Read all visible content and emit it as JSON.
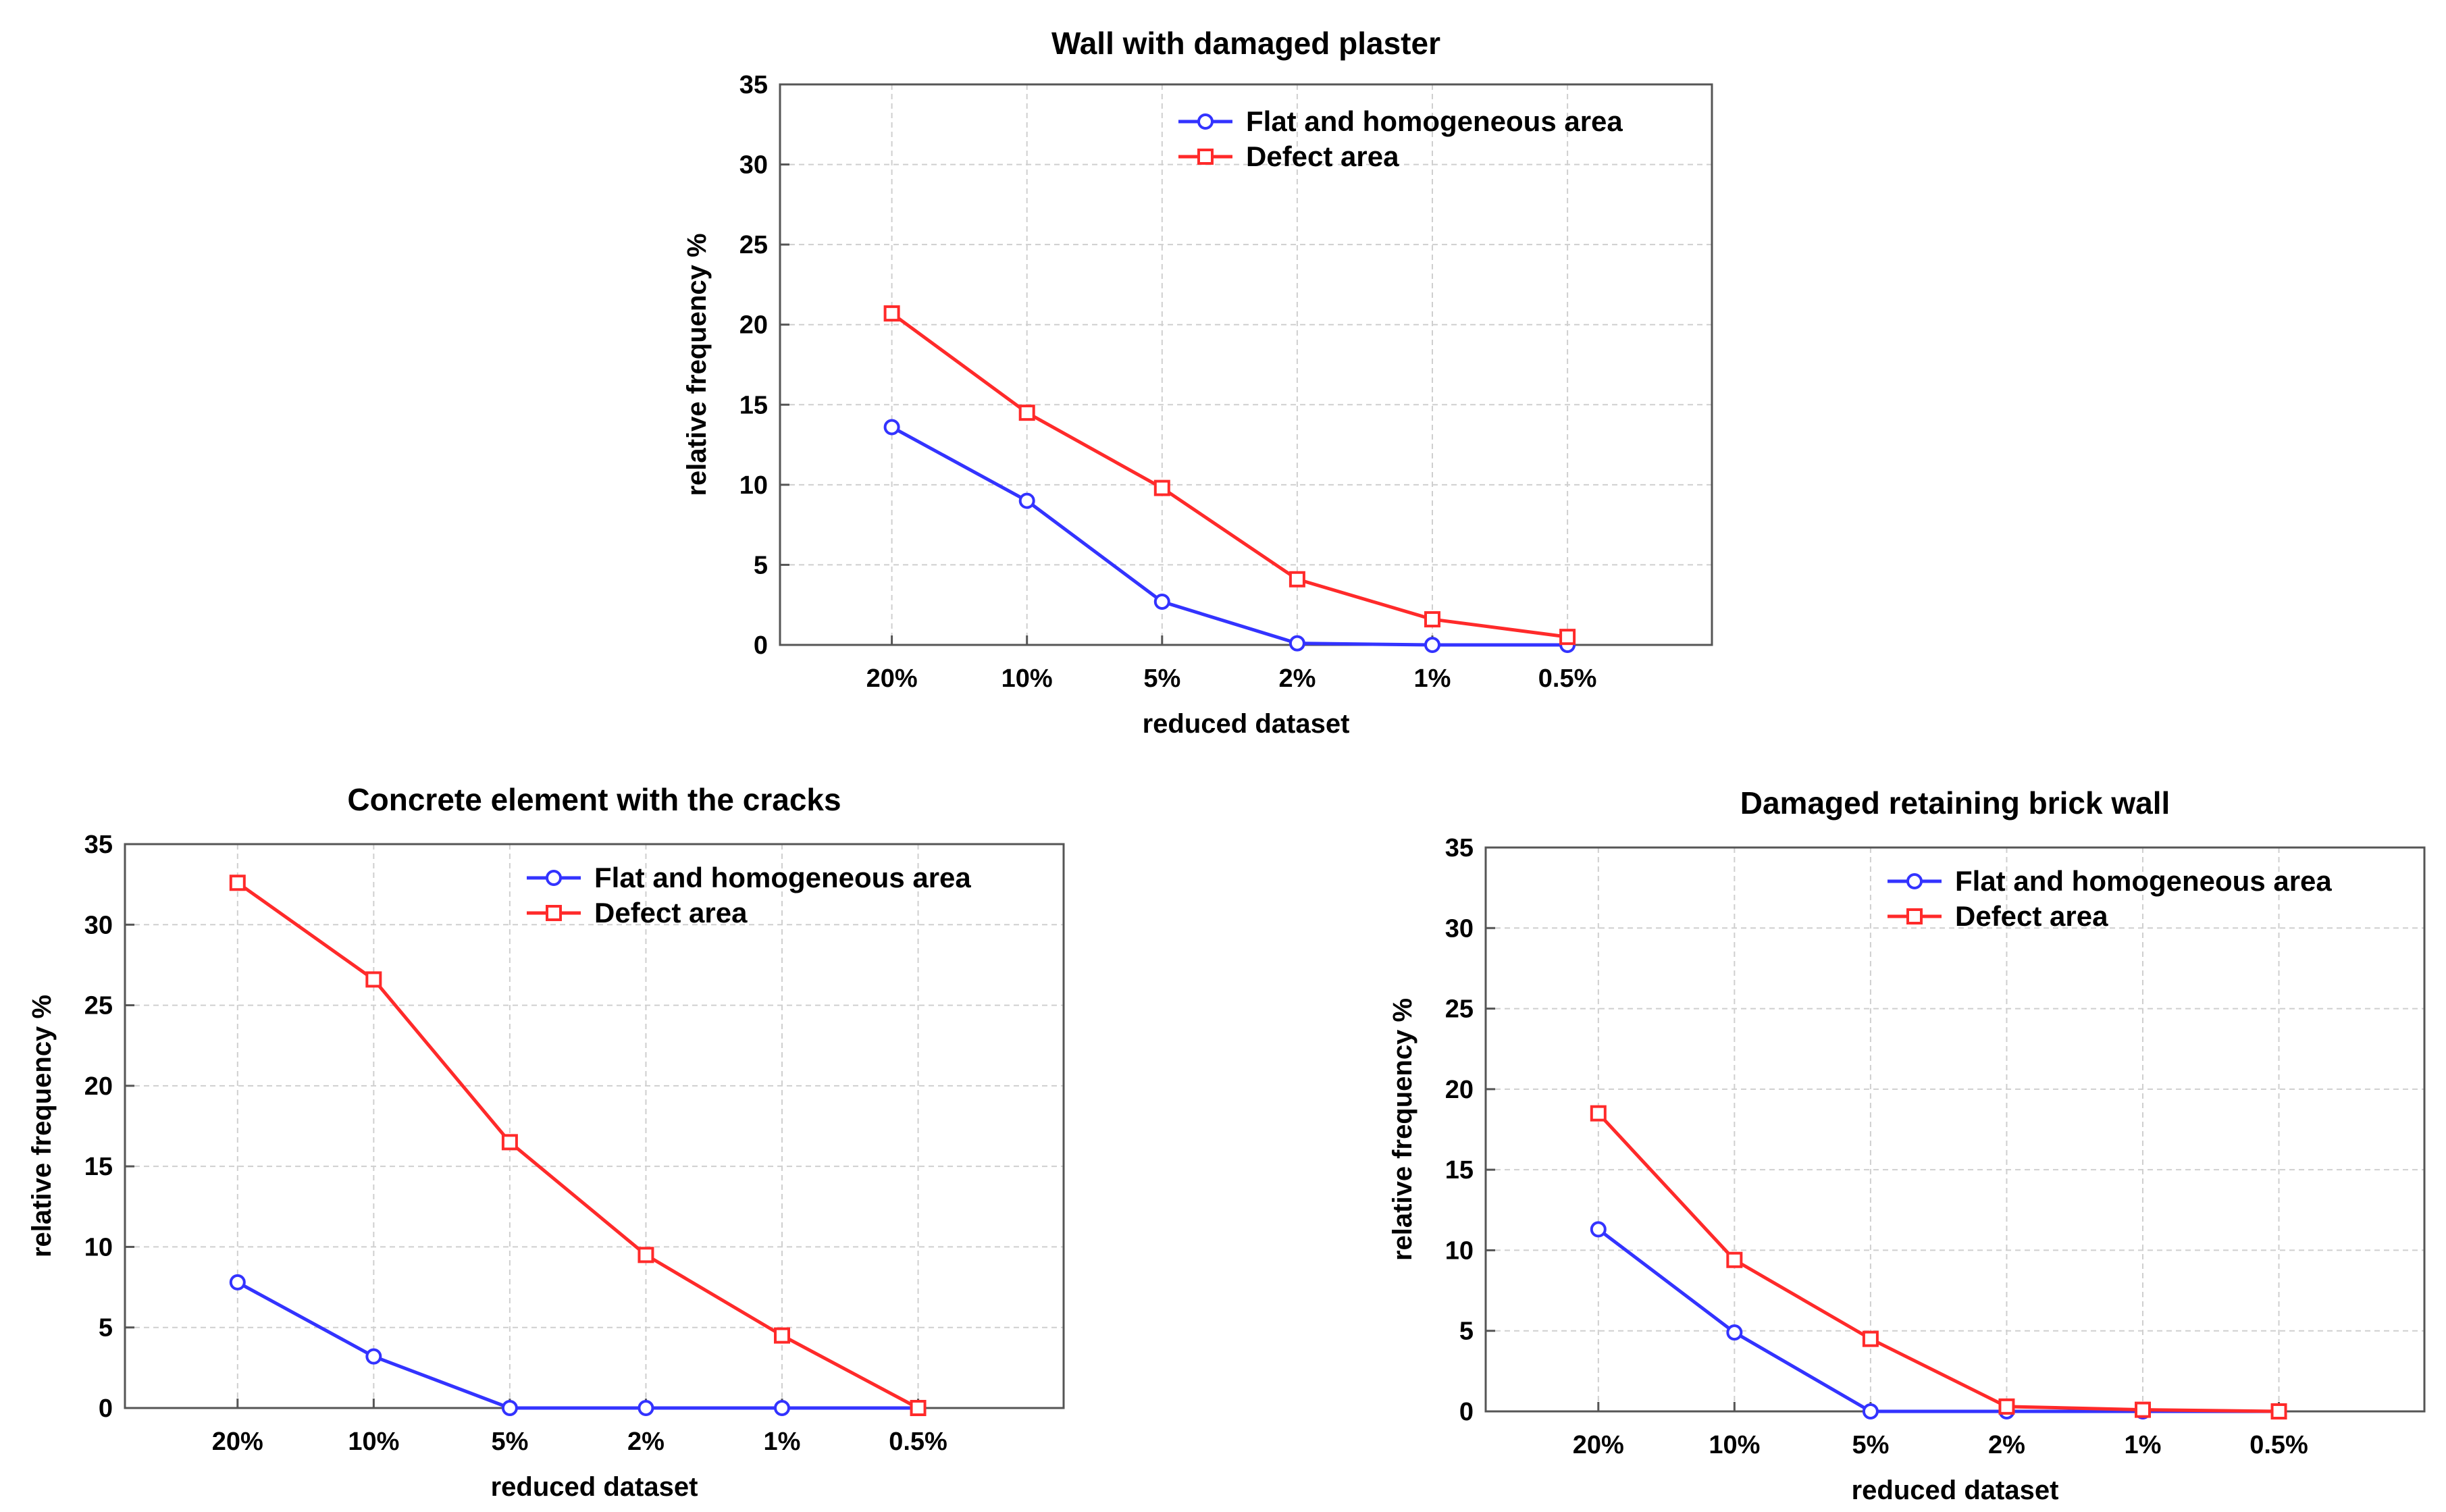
{
  "chart_data": [
    {
      "type": "line",
      "title": "Wall with damaged plaster",
      "xlabel": "reduced dataset",
      "ylabel": "relative frequency %",
      "categories": [
        "20%",
        "10%",
        "5%",
        "2%",
        "1%",
        "0.5%"
      ],
      "ylim": [
        0,
        35
      ],
      "yticks": [
        0,
        5,
        10,
        15,
        20,
        25,
        30,
        35
      ],
      "grid": true,
      "legend_position": "top-right",
      "series": [
        {
          "name": "Flat and homogeneous area",
          "color": "#3333ff",
          "marker": "circle",
          "values": [
            13.6,
            9.0,
            2.7,
            0.1,
            0.0,
            0.0
          ]
        },
        {
          "name": "Defect area",
          "color": "#ff2a2a",
          "marker": "square",
          "values": [
            20.7,
            14.5,
            9.8,
            4.1,
            1.6,
            0.5
          ]
        }
      ]
    },
    {
      "type": "line",
      "title": "Concrete element with the cracks",
      "xlabel": "reduced dataset",
      "ylabel": "relative frequency %",
      "categories": [
        "20%",
        "10%",
        "5%",
        "2%",
        "1%",
        "0.5%"
      ],
      "ylim": [
        0,
        35
      ],
      "yticks": [
        0,
        5,
        10,
        15,
        20,
        25,
        30,
        35
      ],
      "grid": true,
      "legend_position": "top-right",
      "series": [
        {
          "name": "Flat and homogeneous area",
          "color": "#3333ff",
          "marker": "circle",
          "values": [
            7.8,
            3.2,
            0.0,
            0.0,
            0.0,
            0.0
          ]
        },
        {
          "name": "Defect area",
          "color": "#ff2a2a",
          "marker": "square",
          "values": [
            32.6,
            26.6,
            16.5,
            9.5,
            4.5,
            0.0
          ]
        }
      ]
    },
    {
      "type": "line",
      "title": "Damaged retaining brick wall",
      "xlabel": "reduced dataset",
      "ylabel": "relative frequency %",
      "categories": [
        "20%",
        "10%",
        "5%",
        "2%",
        "1%",
        "0.5%"
      ],
      "ylim": [
        0,
        35
      ],
      "yticks": [
        0,
        5,
        10,
        15,
        20,
        25,
        30,
        35
      ],
      "grid": true,
      "legend_position": "top-right",
      "series": [
        {
          "name": "Flat and homogeneous area",
          "color": "#3333ff",
          "marker": "circle",
          "values": [
            11.3,
            4.9,
            0.0,
            0.0,
            0.0,
            0.0
          ]
        },
        {
          "name": "Defect area",
          "color": "#ff2a2a",
          "marker": "square",
          "values": [
            18.5,
            9.4,
            4.5,
            0.3,
            0.1,
            0.0
          ]
        }
      ]
    }
  ]
}
